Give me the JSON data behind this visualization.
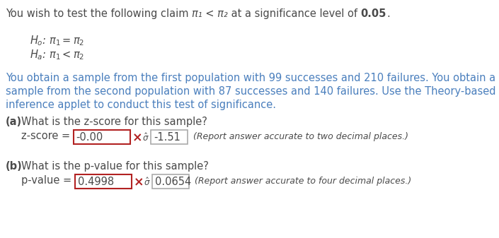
{
  "bg_color": "#ffffff",
  "text_color_dark": "#4a4a4a",
  "text_color_red": "#b22222",
  "text_color_blue": "#4a7fbd",
  "fs_main": 10.5,
  "fs_small": 9.0,
  "fig_w": 7.05,
  "fig_h": 3.37,
  "dpi": 100,
  "line1_normal": "You wish to test the following claim ",
  "line1_math": "π₁ < π₂",
  "line1_mid": " at a significance level of ",
  "line1_bold": "0.05",
  "line1_end": ".",
  "hyp0": "$H_o$: $\\pi_1 = \\pi_2$",
  "hypa": "$H_a$: $\\pi_1 < \\pi_2$",
  "para1": "You obtain a sample from the first population with 99 successes and 210 failures. You obtain a",
  "para2": "sample from the second population with 87 successes and 140 failures. Use the Theory-based",
  "para3": "inference applet to conduct this test of significance.",
  "part_a_bold": "(a)",
  "part_a_text": "  What is the z-score for this sample?",
  "zscore_label": "z-score = ",
  "zscore_wrong": "-0.00",
  "zscore_correct": "-1.51",
  "zscore_hint": "(Report answer accurate to two decimal places.)",
  "part_b_bold": "(b)",
  "part_b_text": "  What is the p-value for this sample?",
  "pvalue_label": "p-value = ",
  "pvalue_wrong": "0.4998",
  "pvalue_correct": "0.0654",
  "pvalue_hint": "(Report answer accurate to four decimal places.)"
}
